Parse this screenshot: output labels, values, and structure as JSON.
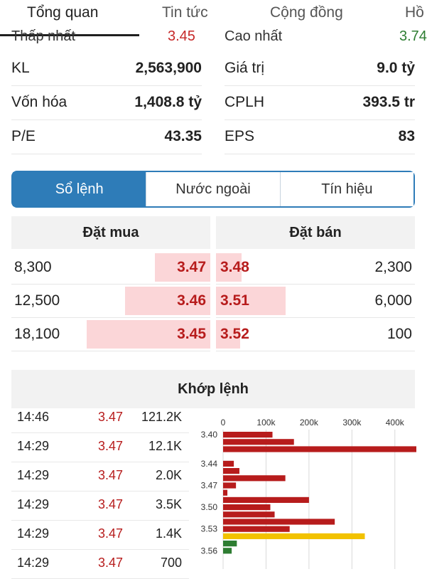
{
  "top_tabs": [
    "Tổng quan",
    "Tin tức",
    "Cộng đồng",
    "Hồ"
  ],
  "clipped_row": {
    "left_label": "Thấp nhất",
    "left_value": "3.45",
    "right_label": "Cao nhất",
    "right_value": "3.74"
  },
  "stats": [
    {
      "label": "KL",
      "value": "2,563,900",
      "label2": "Giá trị",
      "value2": "9.0 tỷ"
    },
    {
      "label": "Vốn hóa",
      "value": "1,408.8 tỷ",
      "label2": "CPLH",
      "value2": "393.5 tr"
    },
    {
      "label": "P/E",
      "value": "43.35",
      "label2": "EPS",
      "value2": "83"
    }
  ],
  "segments": [
    "Sổ lệnh",
    "Nước ngoài",
    "Tín hiệu"
  ],
  "order_book": {
    "buy_header": "Đặt mua",
    "sell_header": "Đặt bán",
    "rows": [
      {
        "buy_qty": "8,300",
        "buy_price": "3.47",
        "sell_price": "3.48",
        "sell_qty": "2,300",
        "buy_fill": 0.28,
        "sell_fill": 0.13
      },
      {
        "buy_qty": "12,500",
        "buy_price": "3.46",
        "sell_price": "3.51",
        "sell_qty": "6,000",
        "buy_fill": 0.43,
        "sell_fill": 0.35
      },
      {
        "buy_qty": "18,100",
        "buy_price": "3.45",
        "sell_price": "3.52",
        "sell_qty": "100",
        "buy_fill": 0.62,
        "sell_fill": 0.12
      }
    ]
  },
  "matched": {
    "title": "Khớp lệnh",
    "trades": [
      {
        "time": "14:46",
        "price": "3.47",
        "volume": "121.2K"
      },
      {
        "time": "14:29",
        "price": "3.47",
        "volume": "12.1K"
      },
      {
        "time": "14:29",
        "price": "3.47",
        "volume": "2.0K"
      },
      {
        "time": "14:29",
        "price": "3.47",
        "volume": "3.5K"
      },
      {
        "time": "14:29",
        "price": "3.47",
        "volume": "1.4K"
      },
      {
        "time": "14:29",
        "price": "3.47",
        "volume": "700"
      }
    ]
  },
  "colors": {
    "accent": "#2e7cb8",
    "down": "#b71c1c",
    "up": "#2e7d32",
    "ref": "#f2c200"
  },
  "chart_data": {
    "type": "bar",
    "orientation": "horizontal",
    "x_ticks": [
      "0",
      "100k",
      "200k",
      "300k",
      "400k"
    ],
    "xlim": [
      0,
      450000
    ],
    "y_tick_labels": [
      "3.40",
      "3.44",
      "3.47",
      "3.50",
      "3.53",
      "3.56"
    ],
    "bars": [
      {
        "price": 3.4,
        "volume": 115000,
        "color": "down"
      },
      {
        "price": 3.41,
        "volume": 165000,
        "color": "down"
      },
      {
        "price": 3.42,
        "volume": 450000,
        "color": "down"
      },
      {
        "price": 3.43,
        "volume": 0,
        "color": "down"
      },
      {
        "price": 3.44,
        "volume": 25000,
        "color": "down"
      },
      {
        "price": 3.45,
        "volume": 38000,
        "color": "down"
      },
      {
        "price": 3.46,
        "volume": 145000,
        "color": "down"
      },
      {
        "price": 3.47,
        "volume": 30000,
        "color": "down"
      },
      {
        "price": 3.48,
        "volume": 10000,
        "color": "down"
      },
      {
        "price": 3.49,
        "volume": 200000,
        "color": "down"
      },
      {
        "price": 3.5,
        "volume": 110000,
        "color": "down"
      },
      {
        "price": 3.51,
        "volume": 120000,
        "color": "down"
      },
      {
        "price": 3.52,
        "volume": 260000,
        "color": "down"
      },
      {
        "price": 3.53,
        "volume": 155000,
        "color": "down"
      },
      {
        "price": 3.54,
        "volume": 330000,
        "color": "ref"
      },
      {
        "price": 3.55,
        "volume": 32000,
        "color": "up"
      },
      {
        "price": 3.56,
        "volume": 20000,
        "color": "up"
      }
    ]
  }
}
